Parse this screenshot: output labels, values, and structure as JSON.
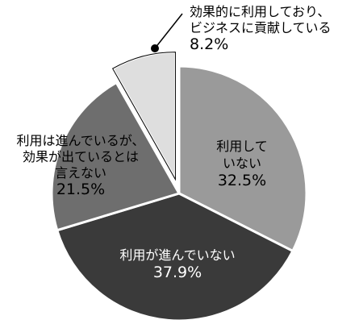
{
  "chart_data": {
    "type": "pie",
    "title": "",
    "slices": [
      {
        "label_lines": [
          "利用して",
          "いない"
        ],
        "percent_text": "32.5%",
        "value": 32.5,
        "color": "#9a9a9a",
        "text_color": "#000000"
      },
      {
        "label_lines": [
          "利用が進んでいない"
        ],
        "percent_text": "37.9%",
        "value": 37.9,
        "color": "#3a3a3a",
        "text_color": "#ffffff"
      },
      {
        "label_lines": [
          "利用は進んでいるが、",
          "効果が出ているとは",
          "言えない"
        ],
        "percent_text": "21.5%",
        "value": 21.5,
        "color": "#6e6e6e",
        "text_color": "#000000"
      },
      {
        "label_lines": [
          "効果的に利用しており、",
          "ビジネスに貢献している"
        ],
        "percent_text": "8.2%",
        "value": 8.2,
        "color": "#dedede",
        "text_color": "#000000",
        "exploded": true
      }
    ],
    "start_angle_deg": 0,
    "direction": "clockwise",
    "legend": "none",
    "edge_color": "#000000"
  }
}
